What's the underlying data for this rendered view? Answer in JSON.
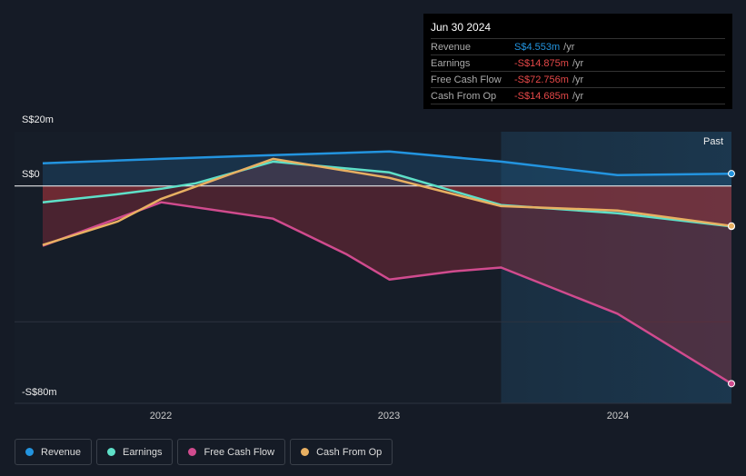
{
  "tooltip": {
    "date": "Jun 30 2024",
    "rows": [
      {
        "label": "Revenue",
        "value": "S$4.553m",
        "unit": "/yr",
        "color": "#2394df"
      },
      {
        "label": "Earnings",
        "value": "-S$14.875m",
        "unit": "/yr",
        "color": "#e64848"
      },
      {
        "label": "Free Cash Flow",
        "value": "-S$72.756m",
        "unit": "/yr",
        "color": "#e64848"
      },
      {
        "label": "Cash From Op",
        "value": "-S$14.685m",
        "unit": "/yr",
        "color": "#e64848"
      }
    ]
  },
  "chart_data": {
    "type": "line",
    "ylim": [
      -80,
      20
    ],
    "xlim": [
      2021.48,
      2024.5
    ],
    "y_tick_labels": [
      "S$20m",
      "S$0",
      "-S$80m"
    ],
    "x_tick_labels": [
      "2022",
      "2023",
      "2024"
    ],
    "x_ticks": [
      2022,
      2023,
      2024
    ],
    "past_label": "Past",
    "past_start": 2023.49,
    "series": [
      {
        "name": "Revenue",
        "color": "#2394df",
        "x": [
          2021.48,
          2022,
          2022.49,
          2023,
          2023.49,
          2024,
          2024.5
        ],
        "y": [
          8.4,
          10,
          11.4,
          12.7,
          9,
          4,
          4.553
        ]
      },
      {
        "name": "Earnings",
        "color": "#5ee0c8",
        "x": [
          2021.48,
          2021.81,
          2022,
          2022.15,
          2022.49,
          2023,
          2023.49,
          2024,
          2024.5
        ],
        "y": [
          -6,
          -3,
          -1,
          1,
          9,
          5,
          -7,
          -10,
          -14.875
        ]
      },
      {
        "name": "Free Cash Flow",
        "color": "#d04b8e",
        "x": [
          2021.48,
          2022,
          2022.49,
          2022.81,
          2023,
          2023.28,
          2023.49,
          2024,
          2024.5
        ],
        "y": [
          -22,
          -6,
          -12,
          -25,
          -34.4,
          -31.4,
          -30,
          -47,
          -72.756
        ]
      },
      {
        "name": "Cash From Op",
        "color": "#e8b062",
        "x": [
          2021.48,
          2021.81,
          2022,
          2022.49,
          2023,
          2023.49,
          2024,
          2024.5
        ],
        "y": [
          -21.7,
          -13,
          -4.7,
          10,
          3,
          -7.4,
          -9,
          -14.685
        ]
      }
    ]
  }
}
